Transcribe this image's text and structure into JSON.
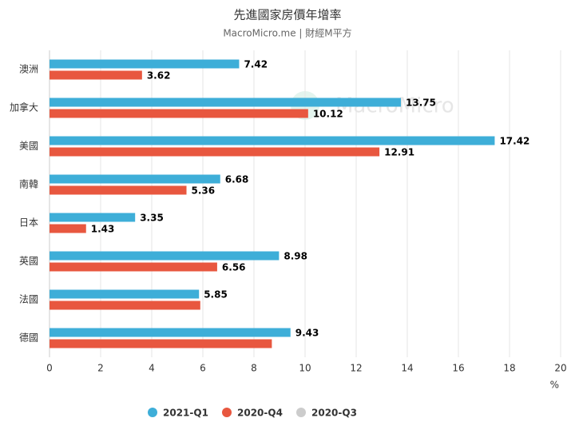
{
  "chart_data": {
    "type": "barh",
    "title": "先進國家房價年增率",
    "subtitle": "MacroMicro.me | 財經M平方",
    "watermark": "MacroMicro",
    "categories": [
      "澳洲",
      "加拿大",
      "美國",
      "南韓",
      "日本",
      "英國",
      "法國",
      "德國"
    ],
    "series": [
      {
        "name": "2021-Q1",
        "color": "#3eaed8",
        "values": [
          7.42,
          13.75,
          17.42,
          6.68,
          3.35,
          8.98,
          5.85,
          9.43
        ]
      },
      {
        "name": "2020-Q4",
        "color": "#e8573f",
        "values": [
          3.62,
          10.12,
          12.91,
          5.36,
          1.43,
          6.56,
          5.9,
          8.7
        ],
        "value_labels": [
          "3.62",
          "10.12",
          "12.91",
          "5.36",
          "1.43",
          "6.56",
          null,
          null
        ]
      },
      {
        "name": "2020-Q3",
        "color": "#cccccc",
        "hidden": true,
        "values": [
          null,
          null,
          null,
          null,
          null,
          null,
          null,
          null
        ]
      }
    ],
    "x_label": "%",
    "xlim": [
      0,
      20
    ],
    "xticks": [
      0,
      2,
      4,
      6,
      8,
      10,
      12,
      14,
      16,
      18,
      20
    ],
    "grid": true
  }
}
